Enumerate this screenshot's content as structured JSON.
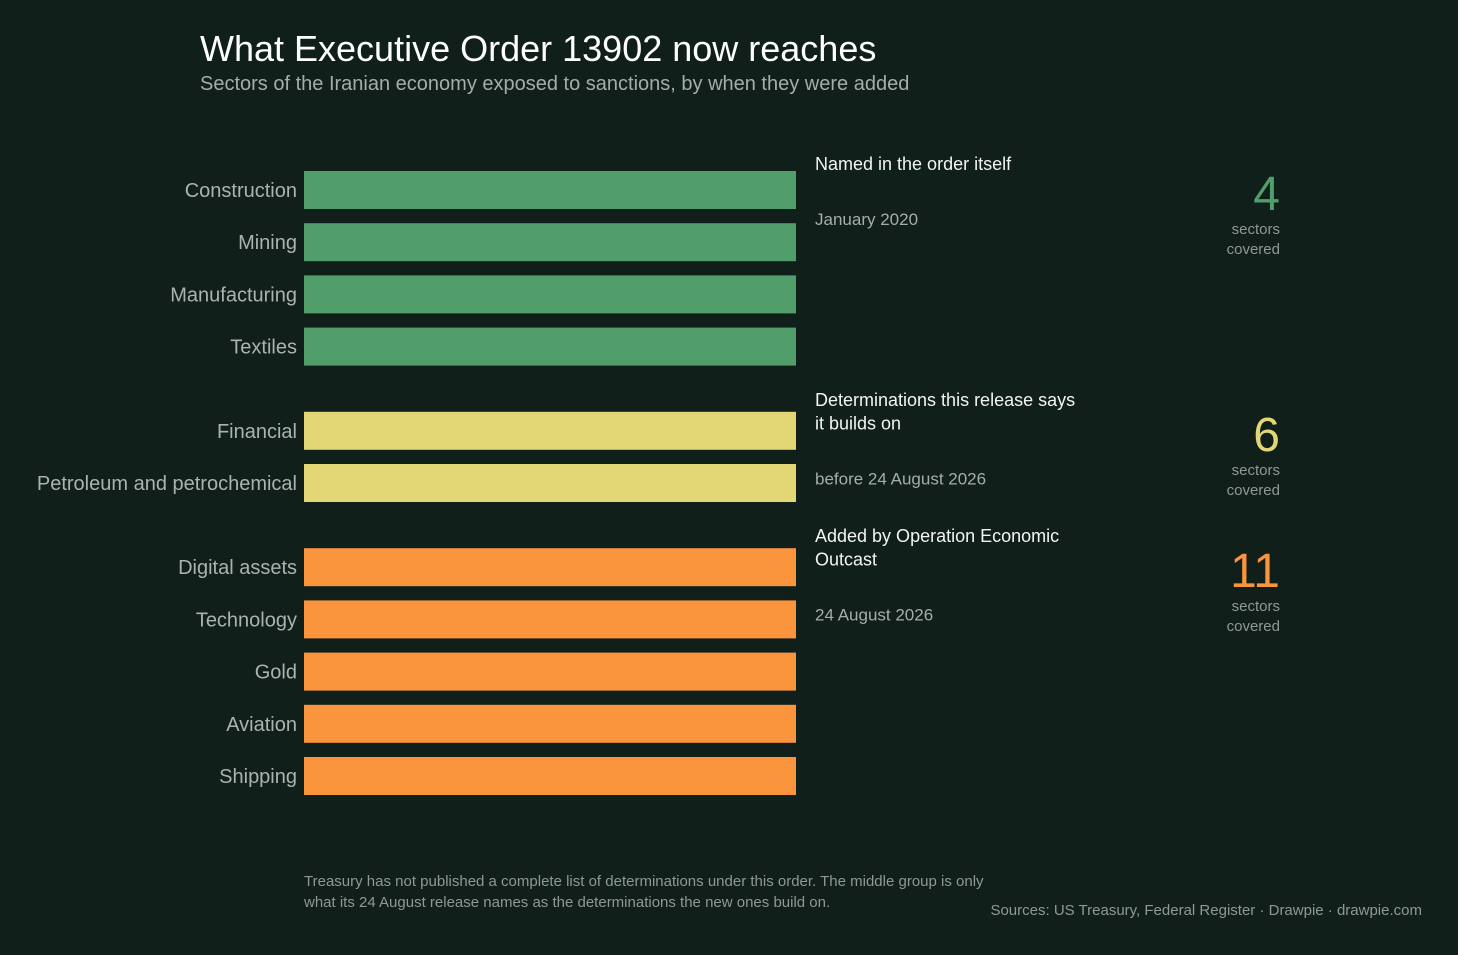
{
  "title": "What Executive Order 13902 now reaches",
  "subtitle": "Sectors of the Iranian economy exposed to sanctions, by when they were added",
  "chart_data": {
    "type": "bar",
    "groups": [
      {
        "name": "Named in the order itself",
        "date": "January 2020",
        "color": "#519e6b",
        "count": "4",
        "count_label": [
          "sectors",
          "covered"
        ],
        "categories": [
          "Construction",
          "Mining",
          "Manufacturing",
          "Textiles"
        ]
      },
      {
        "name": "Determinations this release says it builds on",
        "date": "before 24 August 2026",
        "color": "#e3d775",
        "count": "6",
        "count_label": [
          "sectors",
          "covered"
        ],
        "categories": [
          "Financial",
          "Petroleum and petrochemical"
        ]
      },
      {
        "name": "Added by Operation Economic Outcast",
        "date": "24 August 2026",
        "color": "#fa943d",
        "count": "11",
        "count_label": [
          "sectors",
          "covered"
        ],
        "categories": [
          "Digital assets",
          "Technology",
          "Gold",
          "Aviation",
          "Shipping"
        ]
      }
    ]
  },
  "note": "Treasury has not published a complete list of determinations under this order. The middle group is only what its 24 August release names as the determinations the new ones build on.",
  "sources": "Sources: US Treasury, Federal Register  ·  Drawpie · drawpie.com"
}
